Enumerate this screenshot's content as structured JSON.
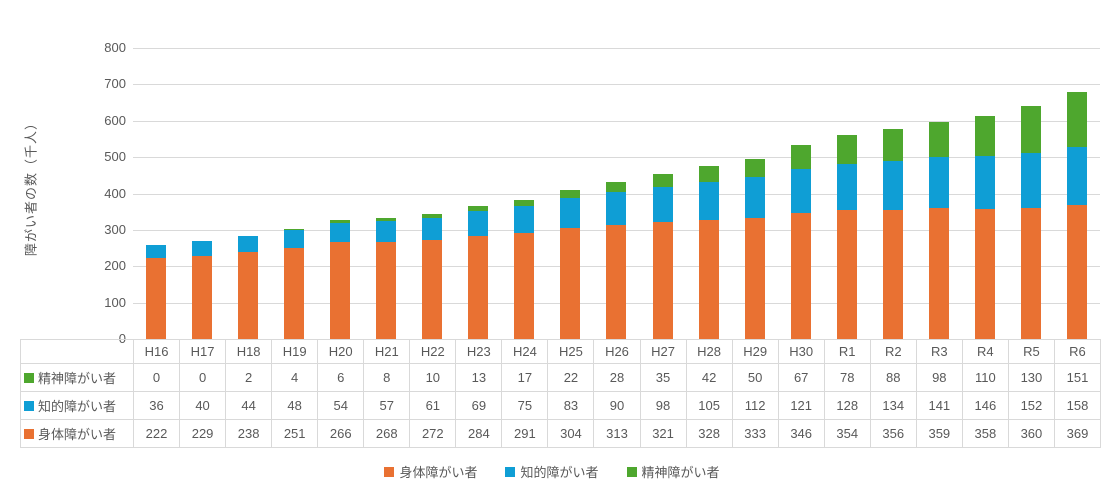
{
  "chart_data": {
    "type": "bar",
    "stacked": true,
    "ylabel": "障がい者の数（千人）",
    "ylim": [
      0,
      800
    ],
    "ytick_step": 100,
    "yticks": [
      0,
      100,
      200,
      300,
      400,
      500,
      600,
      700,
      800
    ],
    "grid": true,
    "legend_position": "bottom",
    "categories": [
      "H16",
      "H17",
      "H18",
      "H19",
      "H20",
      "H21",
      "H22",
      "H23",
      "H24",
      "H25",
      "H26",
      "H27",
      "H28",
      "H29",
      "H30",
      "R1",
      "R2",
      "R3",
      "R4",
      "R5",
      "R6"
    ],
    "series": [
      {
        "name": "身体障がい者",
        "color": "#E97132",
        "values": [
          222,
          229,
          238,
          251,
          266,
          268,
          272,
          284,
          291,
          304,
          313,
          321,
          328,
          333,
          346,
          354,
          356,
          359,
          358,
          360,
          369
        ]
      },
      {
        "name": "知的障がい者",
        "color": "#0F9ED5",
        "values": [
          36,
          40,
          44,
          48,
          54,
          57,
          61,
          69,
          75,
          83,
          90,
          98,
          105,
          112,
          121,
          128,
          134,
          141,
          146,
          152,
          158
        ]
      },
      {
        "name": "精神障がい者",
        "color": "#4EA72E",
        "values": [
          0,
          0,
          2,
          4,
          6,
          8,
          10,
          13,
          17,
          22,
          28,
          35,
          42,
          50,
          67,
          78,
          88,
          98,
          110,
          130,
          151
        ]
      }
    ],
    "legend": [
      "身体障がい者",
      "知的障がい者",
      "精神障がい者"
    ],
    "table_row_order": [
      "精神障がい者",
      "知的障がい者",
      "身体障がい者"
    ],
    "colors": {
      "grid": "#D9D9D9",
      "text": "#595959"
    }
  }
}
